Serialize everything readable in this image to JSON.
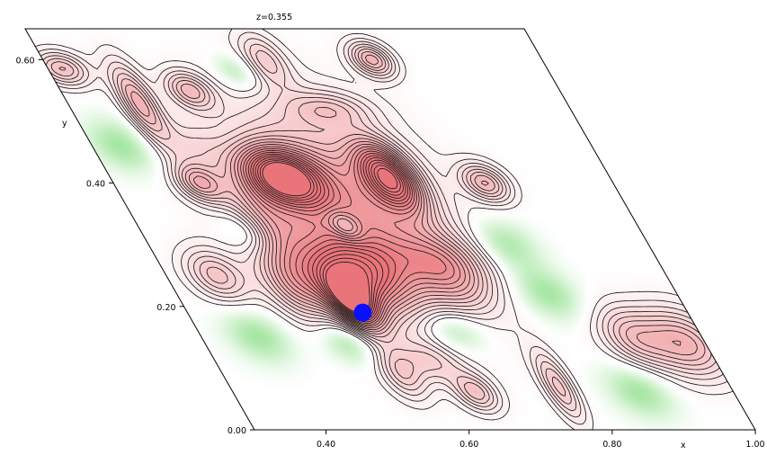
{
  "chart_data": {
    "type": "contour",
    "title": "z=0.355",
    "xlabel": "x",
    "ylabel": "y",
    "xlim": [
      0.3,
      1.0
    ],
    "ylim": [
      0.0,
      0.65
    ],
    "x_ticks": [
      {
        "value": 0.4,
        "label": "0.40"
      },
      {
        "value": 0.6,
        "label": "0.60"
      },
      {
        "value": 0.8,
        "label": "0.80"
      },
      {
        "value": 1.0,
        "label": "1.00"
      }
    ],
    "y_ticks": [
      {
        "value": 0.0,
        "label": "0.00"
      },
      {
        "value": 0.2,
        "label": "0.20"
      },
      {
        "value": 0.4,
        "label": "0.40"
      },
      {
        "value": 0.6,
        "label": "0.60"
      }
    ],
    "grid": false,
    "colors": {
      "positive": "#e9747a",
      "negative": "#9ee49a",
      "contour_line": "#1a1a1a",
      "marker": "#0a10ff"
    },
    "peaks": [
      {
        "x": 0.54,
        "y": 0.205,
        "amp": 1.05,
        "sx": 0.022,
        "sy": 0.032
      },
      {
        "x": 0.56,
        "y": 0.25,
        "amp": 0.85,
        "sx": 0.05,
        "sy": 0.04
      },
      {
        "x": 0.54,
        "y": 0.41,
        "amp": 1.2,
        "sx": 0.036,
        "sy": 0.032
      },
      {
        "x": 0.69,
        "y": 0.41,
        "amp": 1.1,
        "sx": 0.026,
        "sy": 0.038
      },
      {
        "x": 0.59,
        "y": 0.33,
        "amp": -0.35,
        "sx": 0.015,
        "sy": 0.017
      },
      {
        "x": 0.6,
        "y": 0.35,
        "amp": 0.8,
        "sx": 0.085,
        "sy": 0.11
      },
      {
        "x": 0.47,
        "y": 0.23,
        "amp": 0.4,
        "sx": 0.03,
        "sy": 0.04
      },
      {
        "x": 0.7,
        "y": 0.25,
        "amp": 0.45,
        "sx": 0.035,
        "sy": 0.04
      },
      {
        "x": 0.42,
        "y": 0.4,
        "amp": 0.55,
        "sx": 0.022,
        "sy": 0.022
      },
      {
        "x": 0.37,
        "y": 0.25,
        "amp": 0.45,
        "sx": 0.028,
        "sy": 0.03
      },
      {
        "x": 0.48,
        "y": 0.55,
        "amp": 0.5,
        "sx": 0.022,
        "sy": 0.022
      },
      {
        "x": 0.4,
        "y": 0.53,
        "amp": 0.6,
        "sx": 0.018,
        "sy": 0.045
      },
      {
        "x": 0.32,
        "y": 0.585,
        "amp": 0.5,
        "sx": 0.025,
        "sy": 0.02
      },
      {
        "x": 0.61,
        "y": 0.6,
        "amp": 0.35,
        "sx": 0.02,
        "sy": 0.03
      },
      {
        "x": 0.76,
        "y": 0.6,
        "amp": 0.6,
        "sx": 0.02,
        "sy": 0.02
      },
      {
        "x": 0.82,
        "y": 0.4,
        "amp": 0.55,
        "sx": 0.022,
        "sy": 0.022
      },
      {
        "x": 0.55,
        "y": 0.09,
        "amp": 0.35,
        "sx": 0.02,
        "sy": 0.03
      },
      {
        "x": 0.64,
        "y": 0.06,
        "amp": 0.45,
        "sx": 0.02,
        "sy": 0.022
      },
      {
        "x": 0.76,
        "y": 0.07,
        "amp": 0.45,
        "sx": 0.015,
        "sy": 0.04
      },
      {
        "x": 0.97,
        "y": 0.14,
        "amp": 0.6,
        "sx": 0.04,
        "sy": 0.04
      },
      {
        "x": 0.9,
        "y": 0.15,
        "amp": 0.4,
        "sx": 0.03,
        "sy": 0.035
      },
      {
        "x": 0.6,
        "y": 0.11,
        "amp": 0.3,
        "sx": 0.03,
        "sy": 0.025
      },
      {
        "x": 0.48,
        "y": 0.33,
        "amp": 0.35,
        "sx": 0.03,
        "sy": 0.05
      },
      {
        "x": 0.66,
        "y": 0.52,
        "amp": 0.3,
        "sx": 0.04,
        "sy": 0.02
      },
      {
        "x": 0.68,
        "y": 0.28,
        "amp": 0.2,
        "sx": 0.06,
        "sy": 0.03
      },
      {
        "x": 0.44,
        "y": 0.46,
        "amp": 0.2,
        "sx": 0.03,
        "sy": 0.03
      },
      {
        "x": 0.66,
        "y": 0.16,
        "amp": -0.3,
        "sx": 0.03,
        "sy": 0.025
      },
      {
        "x": 0.5,
        "y": 0.14,
        "amp": -0.3,
        "sx": 0.025,
        "sy": 0.025
      },
      {
        "x": 0.45,
        "y": 0.32,
        "amp": -0.3,
        "sx": 0.025,
        "sy": 0.025
      },
      {
        "x": 0.8,
        "y": 0.3,
        "amp": -0.3,
        "sx": 0.03,
        "sy": 0.03
      },
      {
        "x": 0.56,
        "y": 0.58,
        "amp": -0.25,
        "sx": 0.02,
        "sy": 0.02
      },
      {
        "x": 0.34,
        "y": 0.46,
        "amp": -0.3,
        "sx": 0.03,
        "sy": 0.03
      },
      {
        "x": 0.38,
        "y": 0.15,
        "amp": -0.3,
        "sx": 0.03,
        "sy": 0.03
      },
      {
        "x": 0.87,
        "y": 0.06,
        "amp": -0.3,
        "sx": 0.03,
        "sy": 0.03
      },
      {
        "x": 0.82,
        "y": 0.22,
        "amp": -0.3,
        "sx": 0.03,
        "sy": 0.03
      }
    ],
    "marker": {
      "x": 0.545,
      "y": 0.19
    }
  }
}
